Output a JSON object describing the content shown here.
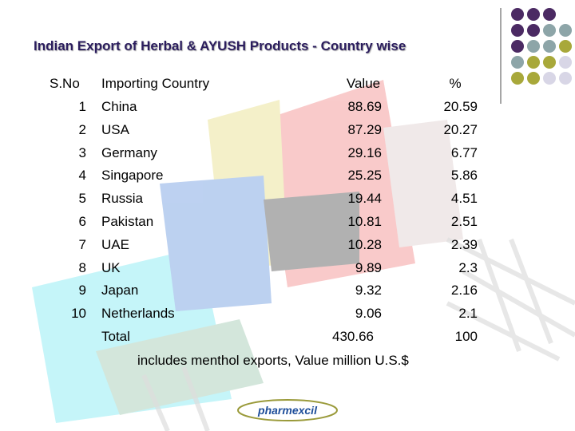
{
  "header": {
    "title": "Indian Export of Herbal & AYUSH Products  - Country wise"
  },
  "table": {
    "columns": [
      "S.No",
      "Importing Country",
      "Value",
      "%"
    ],
    "rows": [
      [
        "1",
        "China",
        "88.69",
        "20.59"
      ],
      [
        "2",
        "USA",
        "87.29",
        "20.27"
      ],
      [
        "3",
        "Germany",
        "29.16",
        "6.77"
      ],
      [
        "4",
        "Singapore",
        "25.25",
        "5.86"
      ],
      [
        "5",
        "Russia",
        "19.44",
        "4.51"
      ],
      [
        "6",
        "Pakistan",
        "10.81",
        "2.51"
      ],
      [
        "7",
        "UAE",
        "10.28",
        "2.39"
      ],
      [
        "8",
        "UK",
        "9.89",
        "2.3"
      ],
      [
        "9",
        "Japan",
        "9.32",
        "2.16"
      ],
      [
        "10",
        "Netherlands",
        "9.06",
        "2.1"
      ]
    ],
    "total": [
      "Total",
      "430.66",
      "100"
    ]
  },
  "note": "includes menthol exports, Value million U.S.$",
  "logo": "pharmexcil"
}
